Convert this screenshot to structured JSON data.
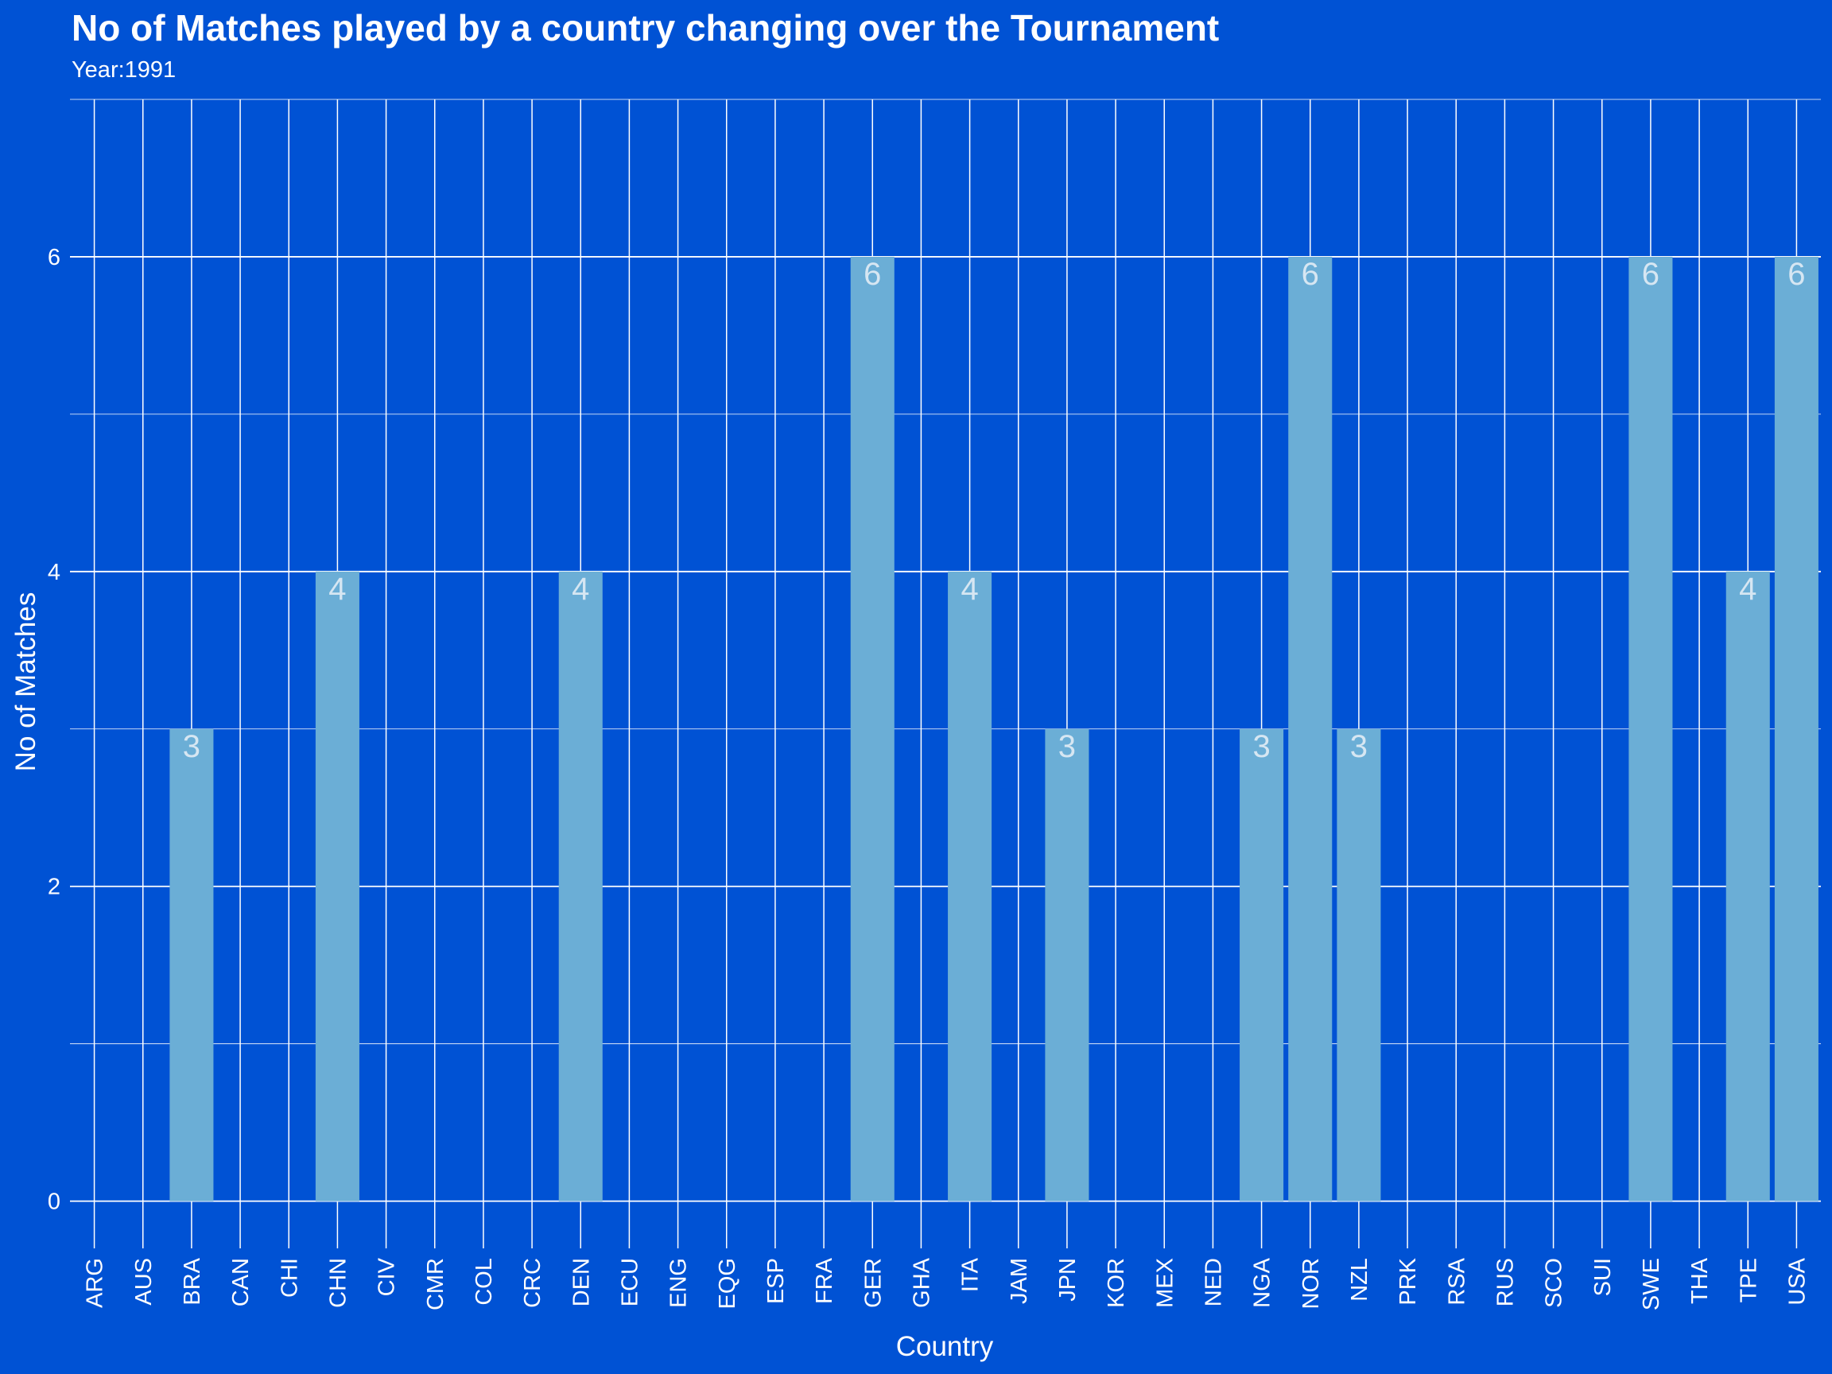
{
  "chart_data": {
    "type": "bar",
    "title": "No of Matches played by a country changing over the Tournament",
    "subtitle": "Year:1991",
    "xlabel": "Country",
    "ylabel": "No of Matches",
    "ylim": [
      -0.3,
      7.0
    ],
    "yticks": [
      0,
      2,
      4,
      6
    ],
    "grid": true,
    "categories": [
      "ARG",
      "AUS",
      "BRA",
      "CAN",
      "CHI",
      "CHN",
      "CIV",
      "CMR",
      "COL",
      "CRC",
      "DEN",
      "ECU",
      "ENG",
      "EQG",
      "ESP",
      "FRA",
      "GER",
      "GHA",
      "ITA",
      "JAM",
      "JPN",
      "KOR",
      "MEX",
      "NED",
      "NGA",
      "NOR",
      "NZL",
      "PRK",
      "RSA",
      "RUS",
      "SCO",
      "SUI",
      "SWE",
      "THA",
      "TPE",
      "USA"
    ],
    "values": [
      null,
      null,
      3,
      null,
      null,
      4,
      null,
      null,
      null,
      null,
      4,
      null,
      null,
      null,
      null,
      null,
      6,
      null,
      4,
      null,
      3,
      null,
      null,
      null,
      3,
      6,
      3,
      null,
      null,
      null,
      null,
      null,
      6,
      null,
      4,
      6
    ],
    "colors": {
      "background": "#0052D4",
      "bar": "#6BAED6",
      "grid": "#FFFFFF",
      "bar_label": "#D6E6F2"
    }
  }
}
